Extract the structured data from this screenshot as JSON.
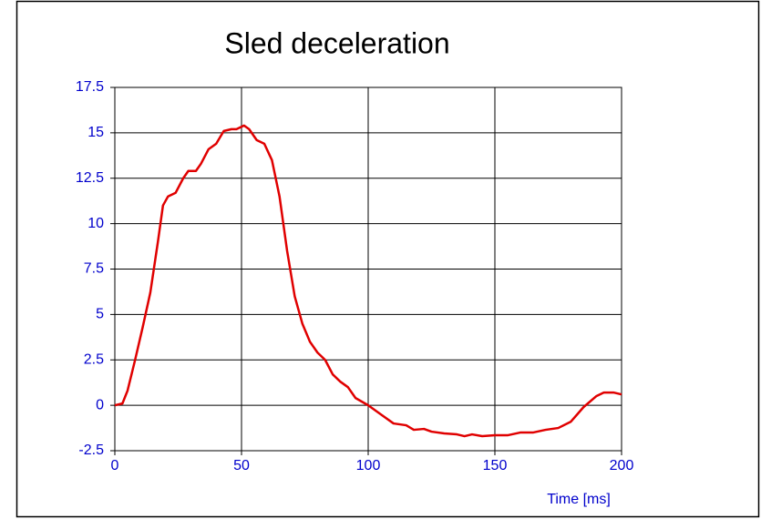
{
  "chart_data": {
    "type": "line",
    "title": "Sled deceleration",
    "x_label": "Time [ms]",
    "x": [
      0,
      3,
      5,
      8,
      11,
      14,
      17,
      19,
      21,
      24,
      27,
      29,
      32,
      34,
      37,
      40,
      43,
      46,
      48,
      51,
      53,
      56,
      59,
      62,
      65,
      68,
      71,
      74,
      77,
      80,
      83,
      86,
      89,
      92,
      95,
      100,
      105,
      110,
      115,
      118,
      122,
      125,
      130,
      135,
      138,
      141,
      145,
      150,
      155,
      160,
      165,
      170,
      175,
      180,
      185,
      190,
      193,
      197,
      200
    ],
    "series": [
      {
        "name": "Sled deceleration",
        "color": "#e00000",
        "values": [
          0,
          0.1,
          0.8,
          2.5,
          4.3,
          6.2,
          9,
          11,
          11.5,
          11.7,
          12.5,
          12.9,
          12.9,
          13.3,
          14.1,
          14.4,
          15.1,
          15.2,
          15.2,
          15.4,
          15.2,
          14.6,
          14.4,
          13.5,
          11.5,
          8.5,
          6,
          4.5,
          3.5,
          2.9,
          2.5,
          1.7,
          1.3,
          1.0,
          0.4,
          0,
          -0.5,
          -1.0,
          -1.1,
          -1.35,
          -1.3,
          -1.45,
          -1.55,
          -1.6,
          -1.7,
          -1.6,
          -1.7,
          -1.65,
          -1.65,
          -1.5,
          -1.5,
          -1.35,
          -1.25,
          -0.9,
          -0.1,
          0.5,
          0.7,
          0.7,
          0.6
        ]
      }
    ],
    "xlim": [
      0,
      200
    ],
    "xticks": [
      0,
      50,
      100,
      150,
      200
    ],
    "ylim": [
      -2.5,
      17.5
    ],
    "yticks": [
      -2.5,
      0,
      2.5,
      5,
      7.5,
      10,
      12.5,
      15,
      17.5
    ],
    "grid": true
  }
}
